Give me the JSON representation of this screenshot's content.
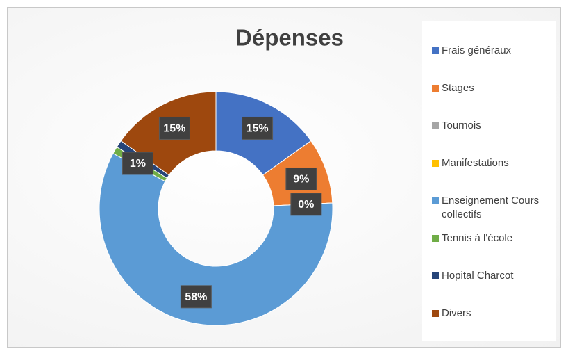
{
  "chart_data": {
    "type": "pie",
    "title": "Dépenses",
    "categories": [
      "Frais généraux",
      "Stages",
      "Tournois",
      "Manifestations",
      "Enseignement Cours collectifs",
      "Tennis à l'école",
      "Hopital Charcot",
      "Divers"
    ],
    "values": [
      15,
      9,
      0,
      0,
      58,
      1,
      1,
      15
    ],
    "value_labels": [
      "15%",
      "9%",
      "0%",
      null,
      "58%",
      "1%",
      null,
      "15%"
    ],
    "colors": [
      "#4472c4",
      "#ed7d31",
      "#a5a5a5",
      "#ffc000",
      "#5b9bd5",
      "#70ad47",
      "#264478",
      "#9e480e"
    ],
    "donut": true,
    "legend": "right"
  }
}
